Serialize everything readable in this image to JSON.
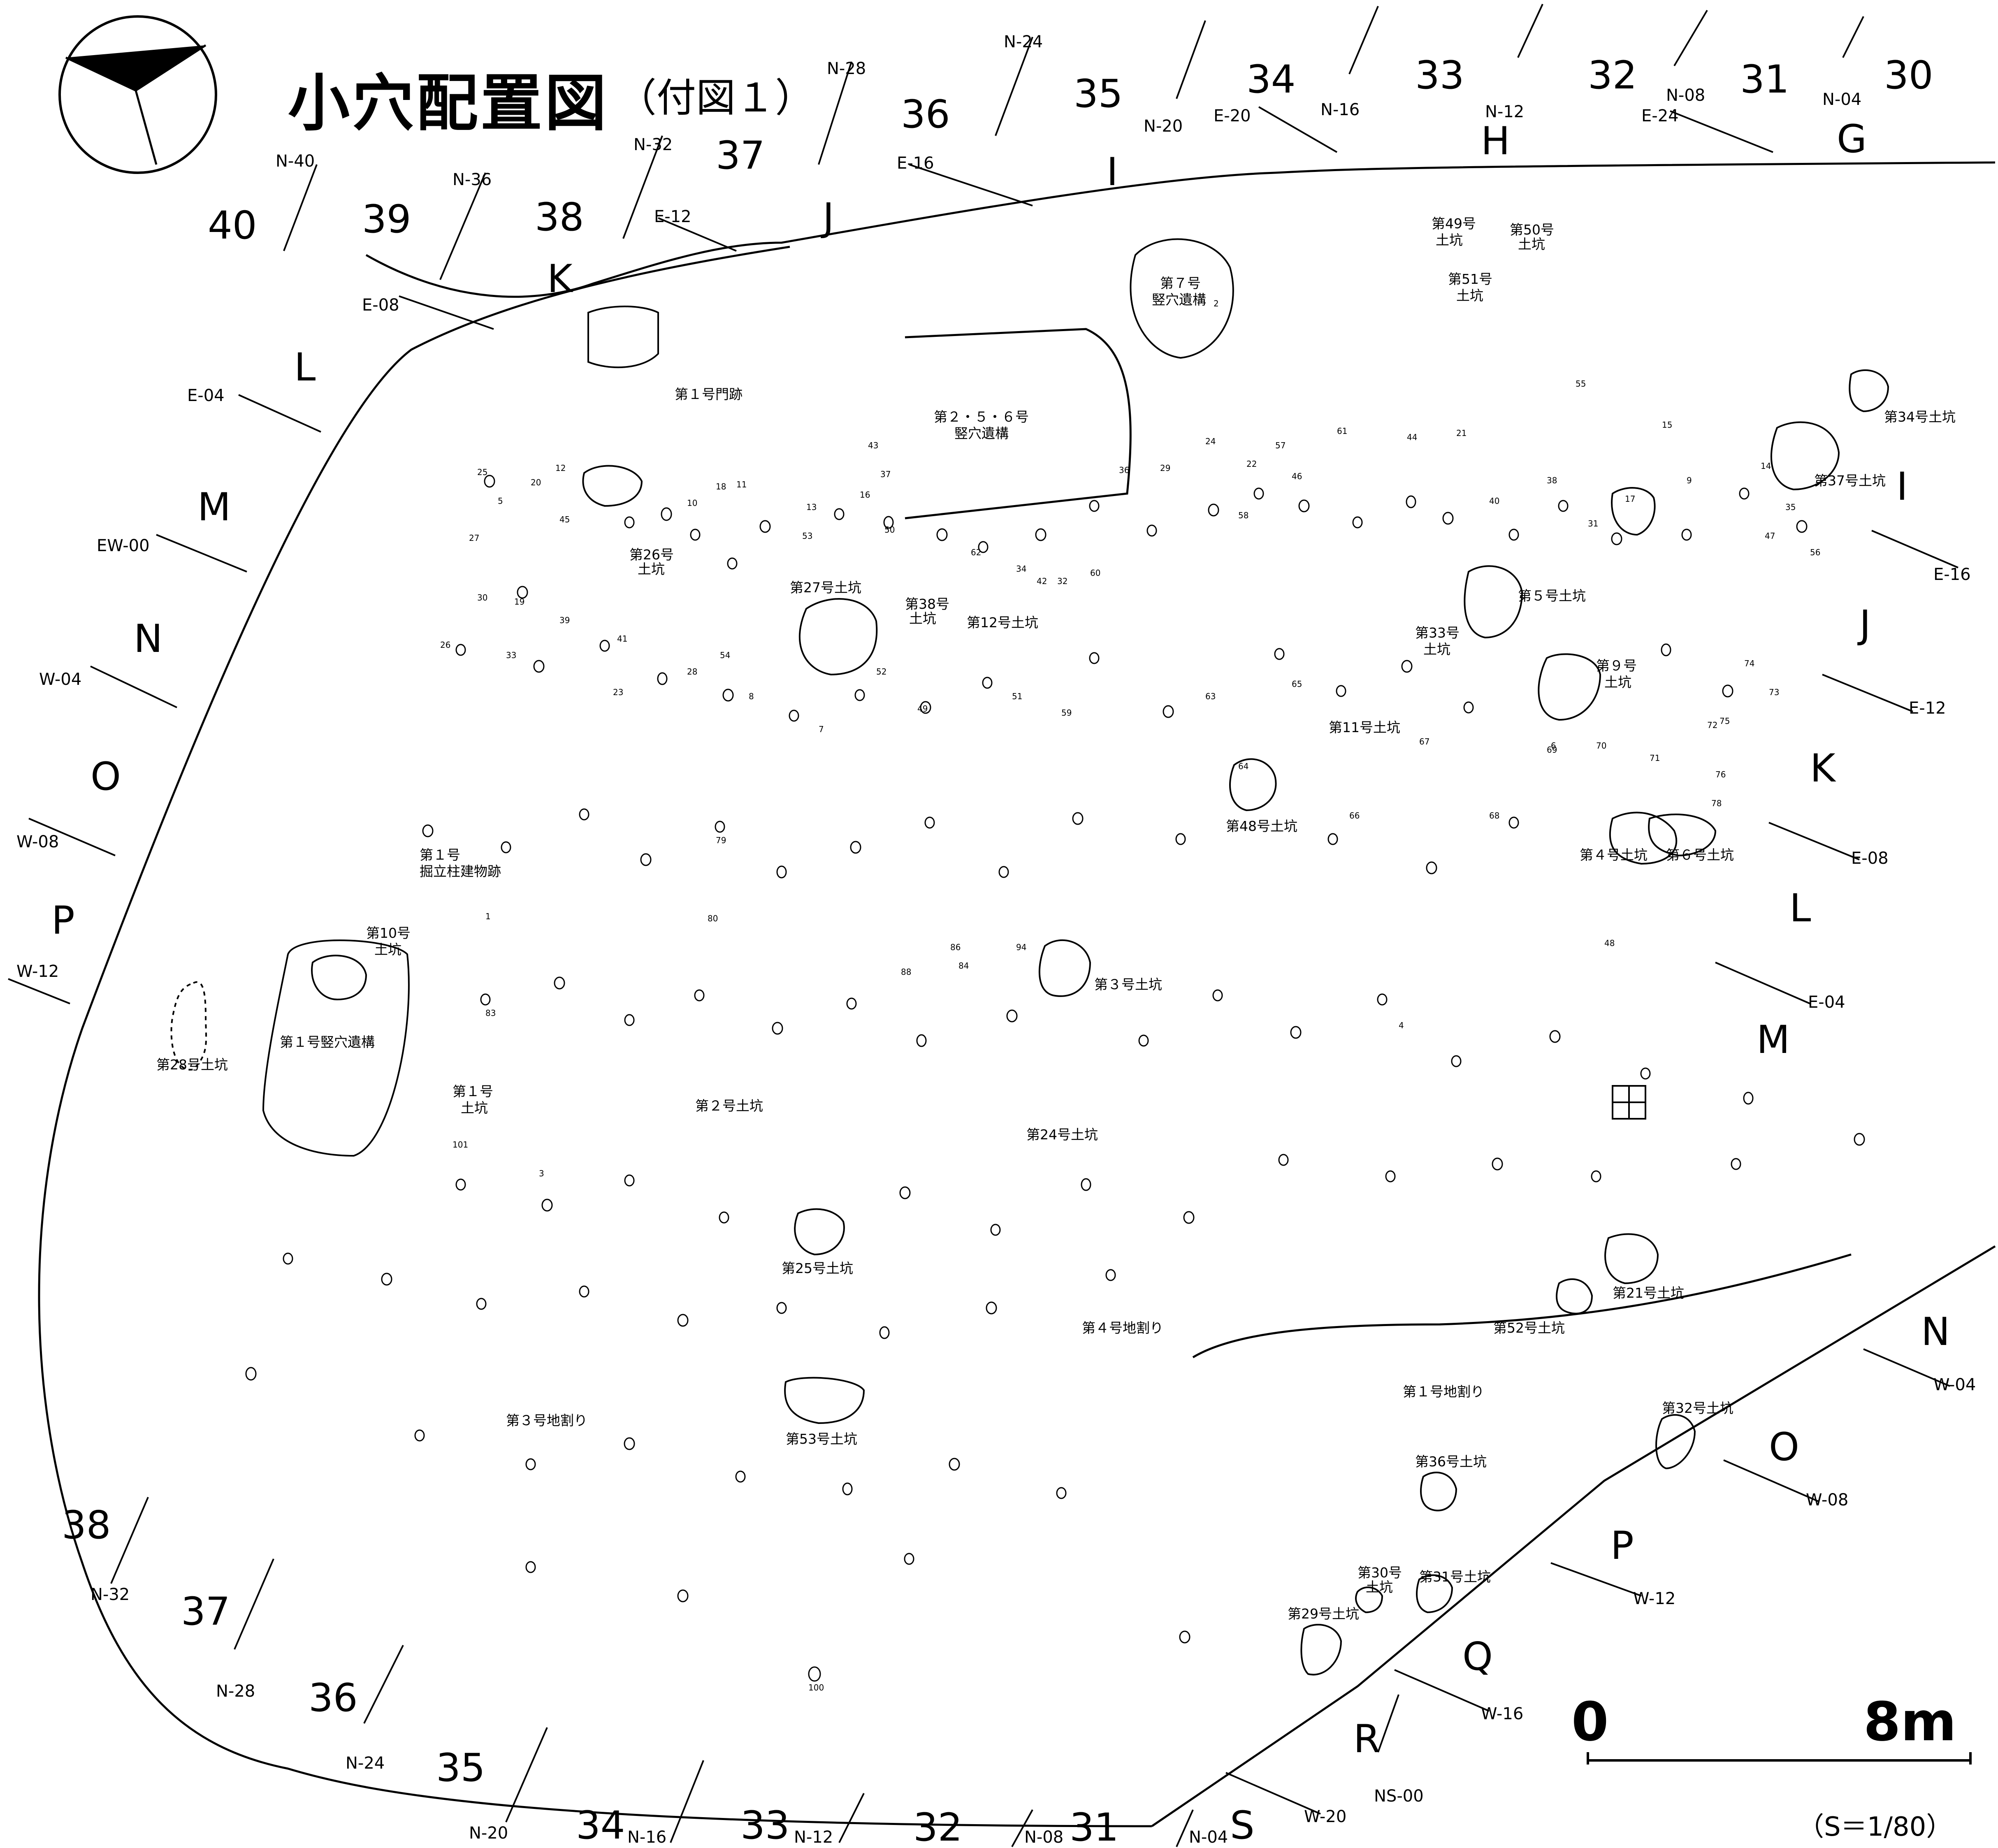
{
  "title": "小穴配置図",
  "subtitle": "（付図１）",
  "scale": {
    "zero": "0",
    "end": "8m",
    "ratio": "（S＝1/80）"
  },
  "grid_numbers_top": [
    "40",
    "39",
    "38",
    "37",
    "36",
    "35",
    "34",
    "33",
    "32",
    "31",
    "30"
  ],
  "grid_refs_top": [
    "N-40",
    "N-36",
    "N-32",
    "N-28",
    "N-24",
    "N-20",
    "N-16",
    "N-12",
    "N-08",
    "N-04"
  ],
  "grid_letters_top": [
    "K",
    "J",
    "I",
    "H",
    "G"
  ],
  "grid_refs_top_e": [
    "E-12",
    "E-16",
    "E-20",
    "E-24"
  ],
  "grid_letters_left": [
    "L",
    "M",
    "N",
    "O",
    "P"
  ],
  "grid_refs_left": [
    "E-08",
    "E-04",
    "EW-00",
    "W-04",
    "W-08",
    "W-12"
  ],
  "grid_letters_right": [
    "I",
    "J",
    "K",
    "L",
    "M"
  ],
  "grid_refs_right": [
    "E-16",
    "E-12",
    "E-08",
    "E-04"
  ],
  "grid_letters_lower_right": [
    "N",
    "O",
    "P",
    "Q",
    "R",
    "S"
  ],
  "grid_refs_lower_right": [
    "W-04",
    "W-08",
    "W-12",
    "W-16",
    "NS-00",
    "W-20"
  ],
  "grid_numbers_bottom": [
    "38",
    "37",
    "36",
    "35",
    "34",
    "33",
    "32",
    "31"
  ],
  "grid_refs_bottom": [
    "N-32",
    "N-28",
    "N-24",
    "N-20",
    "N-16",
    "N-12",
    "N-08",
    "N-04"
  ],
  "feature_labels": {
    "f1": "第１号門跡",
    "f2a": "第２・５・６号",
    "f2b": "竪穴遺構",
    "f3a": "第７号",
    "f3b": "竪穴遺構",
    "f4": "第26号",
    "f4b": "土坑",
    "f5": "第27号土坑",
    "f6a": "第38号",
    "f6b": "土坑",
    "f7": "第12号土坑",
    "f8": "第49号",
    "f8b": "土坑",
    "f9": "第50号",
    "f9b": "土坑",
    "f10": "第51号",
    "f10b": "土坑",
    "f11": "第34号土坑",
    "f12": "第37号土坑",
    "f13": "第５号土坑",
    "f14": "第33号",
    "f14b": "土坑",
    "f15": "第９号",
    "f15b": "土坑",
    "f16": "第11号土坑",
    "f17": "第48号土坑",
    "f18": "第４号土坑",
    "f19": "第６号土坑",
    "f20a": "第１号",
    "f20b": "掘立柱建物跡",
    "f21a": "第10号",
    "f21b": "土坑",
    "f22": "第１号竪穴遺構",
    "f23": "第28号土坑",
    "f24a": "第１号",
    "f24b": "土坑",
    "f25": "第２号土坑",
    "f26": "第３号土坑",
    "f27": "第24号土坑",
    "f28": "第25号土坑",
    "f29": "第４号地割り",
    "f30": "第52号土坑",
    "f31": "第21号土坑",
    "f32": "第１号地割り",
    "f33": "第３号地割り",
    "f34": "第53号土坑",
    "f35": "第32号土坑",
    "f36": "第36号土坑",
    "f37a": "第30号",
    "f37b": "土坑",
    "f38": "第31号土坑",
    "f39": "第29号土坑"
  },
  "pit_numbers": [
    "25",
    "5",
    "27",
    "20",
    "12",
    "45",
    "43",
    "37",
    "16",
    "13",
    "10",
    "18",
    "11",
    "53",
    "50",
    "62",
    "30",
    "60",
    "19",
    "34",
    "42",
    "32",
    "36",
    "29",
    "24",
    "57",
    "46",
    "58",
    "22",
    "61",
    "44",
    "21",
    "40",
    "38",
    "31",
    "55",
    "17",
    "15",
    "9",
    "14",
    "35",
    "47",
    "56",
    "26",
    "33",
    "39",
    "41",
    "23",
    "28",
    "54",
    "8",
    "7",
    "52",
    "49",
    "51",
    "59",
    "63",
    "64",
    "65",
    "66",
    "67",
    "68",
    "69",
    "70",
    "71",
    "72",
    "73",
    "74",
    "75",
    "76",
    "78",
    "79",
    "80",
    "83",
    "84",
    "86",
    "88",
    "94",
    "100",
    "101",
    "48",
    "6",
    "2",
    "3",
    "4",
    "1"
  ]
}
